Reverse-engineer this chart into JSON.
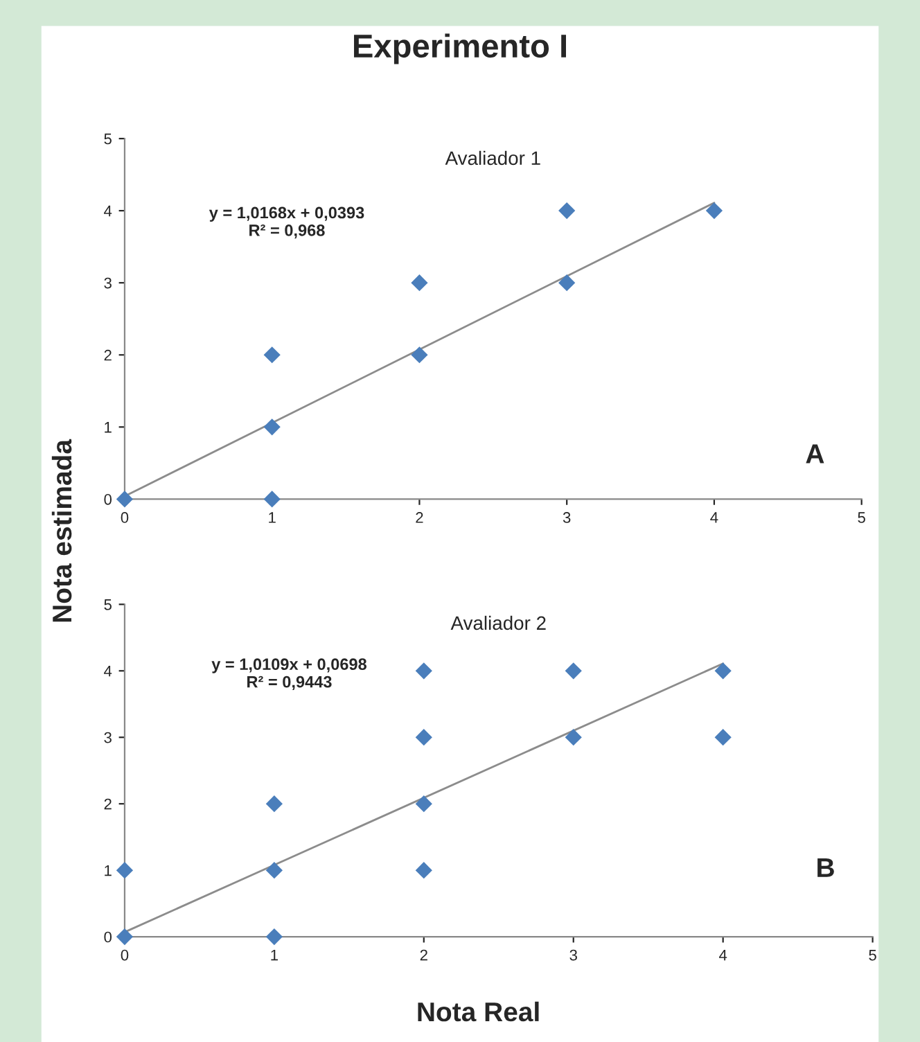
{
  "chart_data": [
    {
      "type": "scatter",
      "title": "Experimento I",
      "subtitle": "Avaliador 1",
      "ylabel": "Nota estimada",
      "grid": false,
      "xlim": [
        0,
        5
      ],
      "ylim": [
        0,
        5
      ],
      "xticks": [
        0,
        1,
        2,
        3,
        4,
        5
      ],
      "yticks": [
        0,
        1,
        2,
        3,
        4,
        5
      ],
      "annotations": [
        "y = 1,0168x + 0,0393\nR² = 0,968",
        "A"
      ],
      "series": [
        {
          "color": "#4a7ebb",
          "marker": "diamond",
          "x": [
            0,
            1,
            1,
            1,
            2,
            2,
            3,
            3,
            4
          ],
          "values": [
            0,
            0,
            1,
            2,
            2,
            3,
            3,
            4,
            4
          ]
        },
        {
          "type": "line",
          "marker": "none",
          "color": "#8c8c8c",
          "x": [
            0,
            4
          ],
          "values": [
            0.04,
            4.11
          ]
        }
      ]
    },
    {
      "type": "scatter",
      "subtitle": "Avaliador 2",
      "xlabel": "Nota Real",
      "grid": false,
      "xlim": [
        0,
        5
      ],
      "ylim": [
        0,
        5
      ],
      "xticks": [
        0,
        1,
        2,
        3,
        4,
        5
      ],
      "yticks": [
        0,
        1,
        2,
        3,
        4,
        5
      ],
      "annotations": [
        "y = 1,0109x + 0,0698\nR² = 0,9443",
        "B"
      ],
      "series": [
        {
          "color": "#4a7ebb",
          "marker": "diamond",
          "x": [
            0,
            0,
            1,
            1,
            1,
            2,
            2,
            2,
            2,
            3,
            3,
            4,
            4
          ],
          "values": [
            0,
            1,
            0,
            1,
            2,
            1,
            2,
            3,
            4,
            3,
            4,
            3,
            4
          ]
        },
        {
          "type": "line",
          "marker": "none",
          "color": "#8c8c8c",
          "x": [
            0,
            4
          ],
          "values": [
            0.07,
            4.11
          ]
        }
      ]
    }
  ]
}
